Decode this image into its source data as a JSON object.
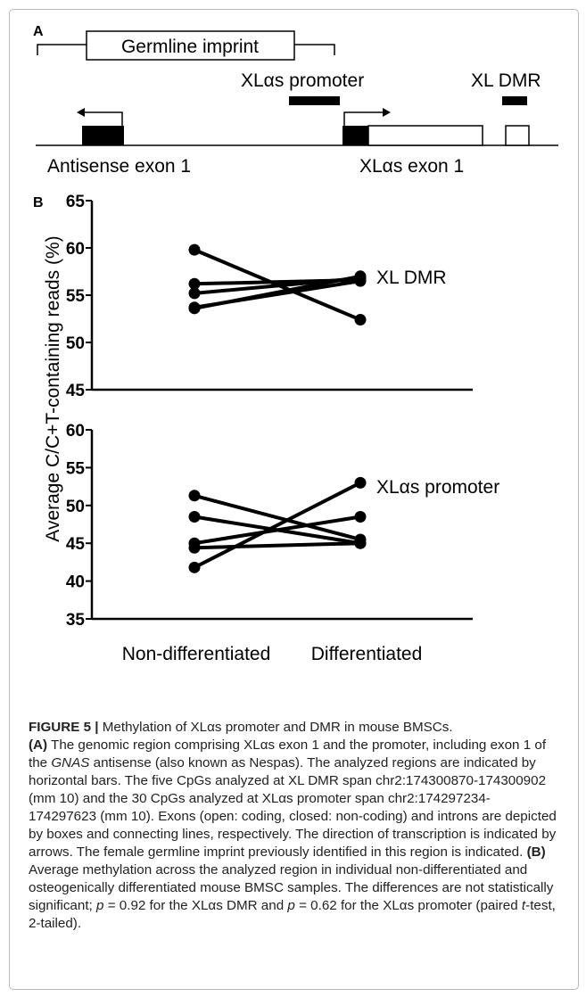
{
  "panel_a": {
    "panel_label": "A",
    "germline_label": "Germline imprint",
    "promoter_label": "XLαs promoter",
    "dmr_label": "XL DMR",
    "antisense_exon_label": "Antisense exon 1",
    "xl_exon_label": "XLαs exon 1"
  },
  "panel_b": {
    "panel_label": "B",
    "y_axis_label": "Average C/C+T-containing reads (%)"
  },
  "chart_data": [
    {
      "type": "line",
      "series_label": "XL DMR",
      "categories": [
        "Non-differentiated",
        "Differentiated"
      ],
      "ylim": [
        45,
        65
      ],
      "yticks": [
        "45",
        "50",
        "55",
        "60",
        "65"
      ],
      "series": [
        {
          "values": [
            59.8,
            52.4
          ]
        },
        {
          "values": [
            56.2,
            56.6
          ]
        },
        {
          "values": [
            55.2,
            56.8
          ]
        },
        {
          "values": [
            53.6,
            57.0
          ]
        },
        {
          "values": [
            53.7,
            56.5
          ]
        }
      ]
    },
    {
      "type": "line",
      "series_label": "XLαs promoter",
      "categories": [
        "Non-differentiated",
        "Differentiated"
      ],
      "ylim": [
        35,
        60
      ],
      "yticks": [
        "35",
        "40",
        "45",
        "50",
        "55",
        "60"
      ],
      "series": [
        {
          "values": [
            51.3,
            45.5
          ]
        },
        {
          "values": [
            48.5,
            45.0
          ]
        },
        {
          "values": [
            45.0,
            48.5
          ]
        },
        {
          "values": [
            44.4,
            45.0
          ]
        },
        {
          "values": [
            41.8,
            53.0
          ]
        }
      ]
    }
  ],
  "caption": {
    "figure_label": "FIGURE 5 |",
    "title": "Methylation of XLαs promoter and DMR in mouse BMSCs.",
    "part_a_label": "(A)",
    "text_a1": "The genomic region comprising XLαs exon 1 and the promoter, including exon 1 of the",
    "gene_name": "GNAS",
    "text_a2": "antisense (also known as Nespas). The analyzed regions are indicated by horizontal bars. The five CpGs analyzed at XL DMR span chr2:174300870-174300902 (mm 10) and the 30 CpGs analyzed at XLαs promoter span chr2:174297234-174297623 (mm 10). Exons (open: coding, closed: non-coding) and introns are depicted by boxes and connecting lines, respectively. The direction of transcription is indicated by arrows. The female germline imprint previously identified in this region is indicated.",
    "part_b_label": "(B)",
    "text_b1": "Average methylation across the analyzed region in individual non-differentiated and osteogenically differentiated mouse BMSC samples. The differences are not statistically significant;",
    "p_symbol": "p",
    "text_b2": "= 0.92 for the XLαs DMR and",
    "text_b3": "= 0.62 for the XLαs promoter (paired",
    "t_symbol": "t",
    "text_b4": "-test, 2-tailed)."
  }
}
